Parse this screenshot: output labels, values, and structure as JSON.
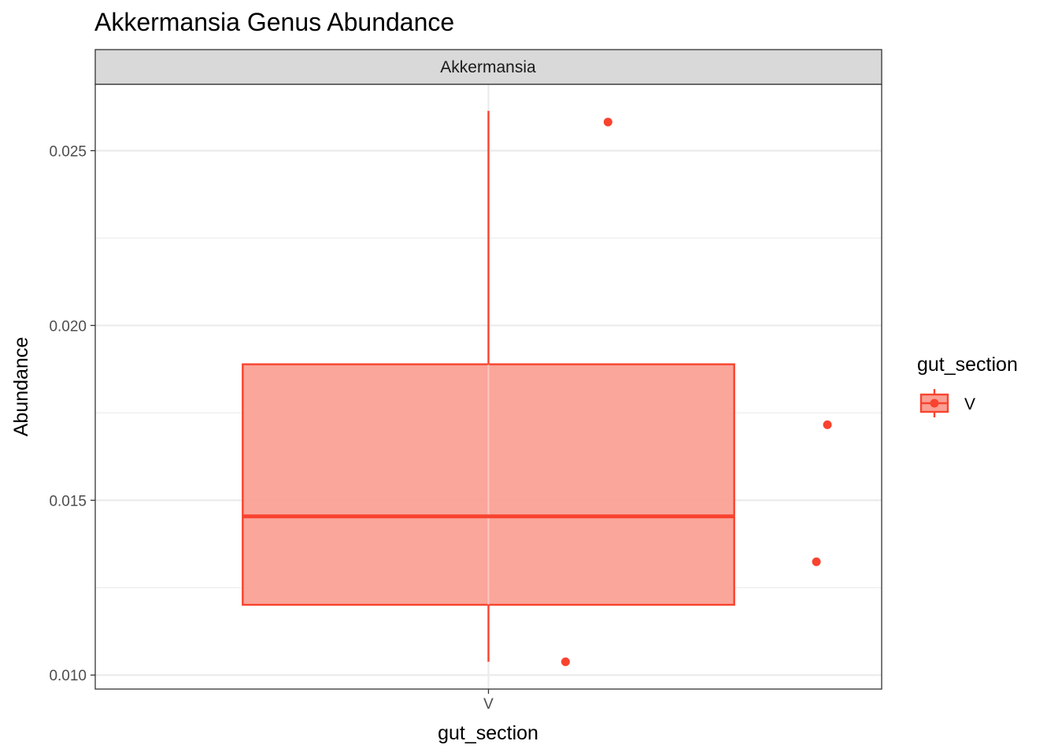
{
  "chart_data": {
    "type": "box",
    "title": "Akkermansia Genus Abundance",
    "facet_label": "Akkermansia",
    "xlabel": "gut_section",
    "ylabel": "Abundance",
    "categories": [
      "V"
    ],
    "y_ticks": [
      "0.010",
      "0.015",
      "0.020",
      "0.025"
    ],
    "y_tick_values": [
      0.01,
      0.015,
      0.02,
      0.025
    ],
    "ylim": [
      0.0096,
      0.0269
    ],
    "grid": true,
    "box": {
      "category": "V",
      "whisker_low": 0.01038,
      "q1": 0.01201,
      "median": 0.01454,
      "q3": 0.01889,
      "whisker_high": 0.02614
    },
    "points": [
      {
        "category": "V",
        "y": 0.02582
      },
      {
        "category": "V",
        "y": 0.01716
      },
      {
        "category": "V",
        "y": 0.01324
      },
      {
        "category": "V",
        "y": 0.01038
      }
    ],
    "legend": {
      "title": "gut_section",
      "entries": [
        {
          "label": "V",
          "color": "#F8432F"
        }
      ],
      "position": "right"
    },
    "colors": {
      "stroke": "#F8432F",
      "fill": "#FA9F93",
      "grid": "#EBEBEB",
      "strip": "#D9D9D9"
    }
  }
}
